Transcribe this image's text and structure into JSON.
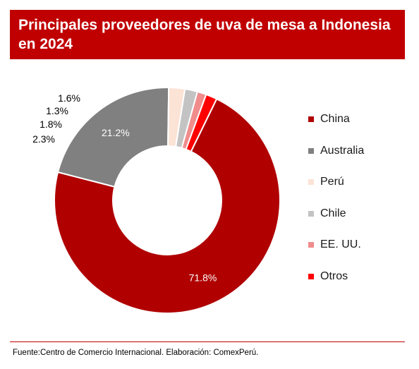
{
  "header": {
    "title": "Principales proveedores de uva de mesa a Indonesia en 2024"
  },
  "chart_data": {
    "type": "pie",
    "variant": "donut",
    "title": "Principales proveedores de uva de mesa a Indonesia en 2024",
    "legend_position": "right",
    "slices": [
      {
        "label": "China",
        "value": 71.8,
        "display": "71.8%",
        "color": "#b00000"
      },
      {
        "label": "Australia",
        "value": 21.2,
        "display": "21.2%",
        "color": "#808080"
      },
      {
        "label": "Perú",
        "value": 2.3,
        "display": "2.3%",
        "color": "#fbe3d6"
      },
      {
        "label": "Chile",
        "value": 1.8,
        "display": "1.8%",
        "color": "#c3c3c3"
      },
      {
        "label": "EE. UU.",
        "value": 1.3,
        "display": "1.3%",
        "color": "#f08c8c"
      },
      {
        "label": "Otros",
        "value": 1.6,
        "display": "1.6%",
        "color": "#ff0000"
      }
    ]
  },
  "footer": {
    "source": "Fuente:Centro de Comercio Internacional. Elaboración: ComexPerú."
  },
  "colors": {
    "title_background": "#c00000",
    "title_text": "#ffffff",
    "rule": "#c00000"
  }
}
